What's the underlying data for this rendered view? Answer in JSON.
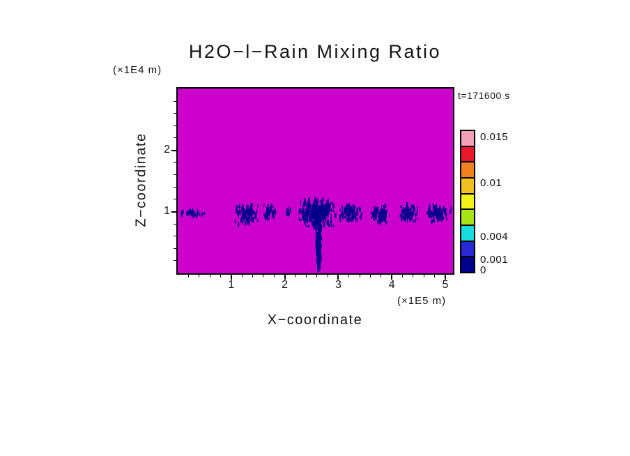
{
  "title": "H2O−l−Rain Mixing Ratio",
  "timestamp_label": "t=171600 s",
  "axes": {
    "x": {
      "label": "X−coordinate",
      "unit": "(×1E5 m)",
      "ticks": [
        "1",
        "2",
        "3",
        "4",
        "5"
      ]
    },
    "z": {
      "label": "Z−coordinate",
      "unit": "(×1E4 m)",
      "ticks": [
        "1",
        "2"
      ]
    }
  },
  "colorbar": {
    "labels": [
      "0.015",
      "0.01",
      "0.004",
      "0.001",
      "0"
    ],
    "segment_colors_top_to_bottom": [
      "#f2a1b9",
      "#e8192c",
      "#f08020",
      "#f0c020",
      "#f3f318",
      "#a9e418",
      "#19dcdc",
      "#2929d4",
      "#00008b"
    ]
  },
  "chart_data": {
    "type": "heatmap",
    "title": "H2O−l−Rain Mixing Ratio",
    "xlabel": "X−coordinate (×1E5 m)",
    "ylabel": "Z−coordinate (×1E4 m)",
    "time_label": "t=171600 s",
    "x_range": [
      0,
      5.15
    ],
    "z_range": [
      0,
      3.0
    ],
    "x_ticks": [
      1,
      2,
      3,
      4,
      5
    ],
    "z_ticks": [
      1,
      2
    ],
    "levels_labeled": [
      0,
      0.001,
      0.004,
      0.01,
      0.015
    ],
    "background_color": "#cc00cc",
    "feature_color": "#00008b",
    "description": "Rain mixing ratio field: near-zero (magenta) everywhere except a broken band of dark-blue rain patches near z = 1 (×1E4 m), with one narrow rain shaft reaching the bottom boundary near x = 2.6 (×1E5 m).",
    "features": [
      {
        "x0": 0.02,
        "x1": 0.55,
        "z0": 0.92,
        "z1": 1.04,
        "density": 0.08
      },
      {
        "x0": 1.05,
        "x1": 1.55,
        "z0": 0.78,
        "z1": 1.16,
        "density": 0.09
      },
      {
        "x0": 1.6,
        "x1": 1.85,
        "z0": 0.84,
        "z1": 1.12,
        "density": 0.1
      },
      {
        "x0": 2.0,
        "x1": 2.12,
        "z0": 0.92,
        "z1": 1.07,
        "density": 0.08
      },
      {
        "x0": 2.25,
        "x1": 2.95,
        "z0": 0.72,
        "z1": 1.22,
        "density": 0.16
      },
      {
        "x0": 2.55,
        "x1": 2.72,
        "z0": 0.02,
        "z1": 0.9,
        "density": 0.3,
        "taper": true
      },
      {
        "x0": 2.98,
        "x1": 3.45,
        "z0": 0.82,
        "z1": 1.14,
        "density": 0.11
      },
      {
        "x0": 3.6,
        "x1": 3.97,
        "z0": 0.78,
        "z1": 1.12,
        "density": 0.1
      },
      {
        "x0": 4.12,
        "x1": 4.5,
        "z0": 0.8,
        "z1": 1.14,
        "density": 0.1
      },
      {
        "x0": 4.6,
        "x1": 5.12,
        "z0": 0.82,
        "z1": 1.12,
        "density": 0.09
      }
    ]
  }
}
